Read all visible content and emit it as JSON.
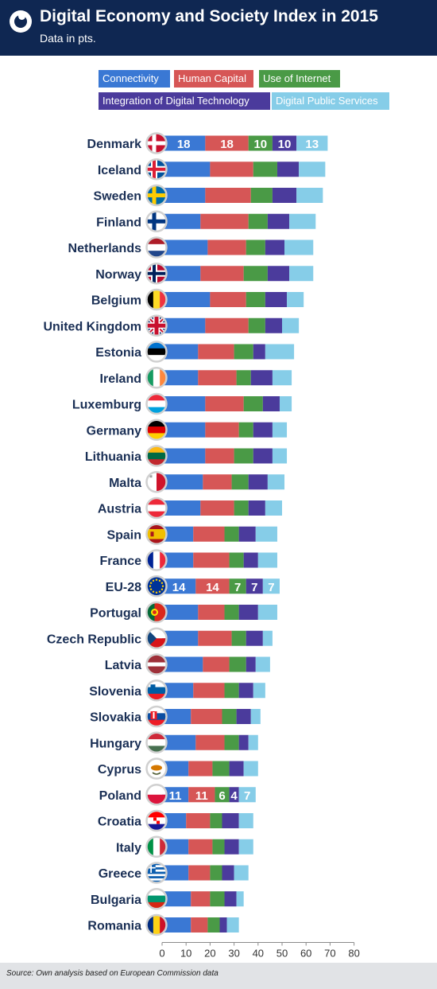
{
  "header": {
    "title": "Digital Economy and Society Index in 2015",
    "subtitle": "Data in pts."
  },
  "colors": {
    "header_bg": "#0f2752",
    "connectivity": "#3a78d4",
    "human_capital": "#d65656",
    "use_of_internet": "#4a9a46",
    "integration": "#4b3b9c",
    "public_services": "#86cde8"
  },
  "footer": {
    "source": "Source: Own analysis based on European Commission data"
  },
  "chart_data": {
    "type": "bar",
    "orientation": "horizontal",
    "stacked": true,
    "xlim": [
      0,
      80
    ],
    "xticks": [
      "0",
      "10",
      "20",
      "30",
      "40",
      "50",
      "60",
      "70",
      "80"
    ],
    "legend_position": "top",
    "categories": [
      "Denmark",
      "Iceland",
      "Sweden",
      "Finland",
      "Netherlands",
      "Norway",
      "Belgium",
      "United Kingdom",
      "Estonia",
      "Ireland",
      "Luxemburg",
      "Germany",
      "Lithuania",
      "Malta",
      "Austria",
      "Spain",
      "France",
      "EU-28",
      "Portugal",
      "Czech Republic",
      "Latvia",
      "Slovenia",
      "Slovakia",
      "Hungary",
      "Cyprus",
      "Poland",
      "Croatia",
      "Italy",
      "Greece",
      "Bulgaria",
      "Romania"
    ],
    "flags": [
      "denmark",
      "iceland",
      "sweden",
      "finland",
      "netherlands",
      "norway",
      "belgium",
      "united-kingdom",
      "estonia",
      "ireland",
      "luxemburg",
      "germany",
      "lithuania",
      "malta",
      "austria",
      "spain",
      "france",
      "eu",
      "portugal",
      "czech-republic",
      "latvia",
      "slovenia",
      "slovakia",
      "hungary",
      "cyprus",
      "poland",
      "croatia",
      "italy",
      "greece",
      "bulgaria",
      "romania"
    ],
    "series": [
      {
        "name": "Connectivity",
        "values": [
          18,
          20,
          18,
          16,
          19,
          16,
          20,
          18,
          15,
          15,
          18,
          18,
          18,
          17,
          16,
          13,
          13,
          14,
          15,
          15,
          17,
          13,
          12,
          14,
          11,
          11,
          10,
          11,
          11,
          12,
          12
        ]
      },
      {
        "name": "Human Capital",
        "values": [
          18,
          18,
          19,
          20,
          16,
          18,
          15,
          18,
          15,
          16,
          16,
          14,
          12,
          12,
          14,
          13,
          15,
          14,
          11,
          14,
          11,
          13,
          13,
          12,
          10,
          11,
          10,
          10,
          9,
          8,
          7
        ]
      },
      {
        "name": "Use of Internet",
        "values": [
          10,
          10,
          9,
          8,
          8,
          10,
          8,
          7,
          8,
          6,
          8,
          6,
          8,
          7,
          6,
          6,
          6,
          7,
          6,
          6,
          7,
          6,
          6,
          6,
          7,
          6,
          5,
          5,
          5,
          6,
          5
        ]
      },
      {
        "name": "Integration of Digital Technology",
        "values": [
          10,
          9,
          10,
          9,
          8,
          9,
          9,
          7,
          5,
          9,
          7,
          8,
          8,
          8,
          7,
          7,
          6,
          7,
          8,
          7,
          4,
          6,
          6,
          4,
          6,
          4,
          7,
          6,
          5,
          5,
          3
        ]
      },
      {
        "name": "Digital Public Services",
        "values": [
          13,
          11,
          11,
          11,
          12,
          10,
          7,
          7,
          12,
          8,
          5,
          6,
          6,
          7,
          7,
          9,
          8,
          7,
          8,
          4,
          6,
          5,
          4,
          4,
          6,
          7,
          6,
          6,
          6,
          3,
          5
        ]
      }
    ],
    "value_labels_rows": [
      "Denmark",
      "EU-28",
      "Poland"
    ]
  }
}
